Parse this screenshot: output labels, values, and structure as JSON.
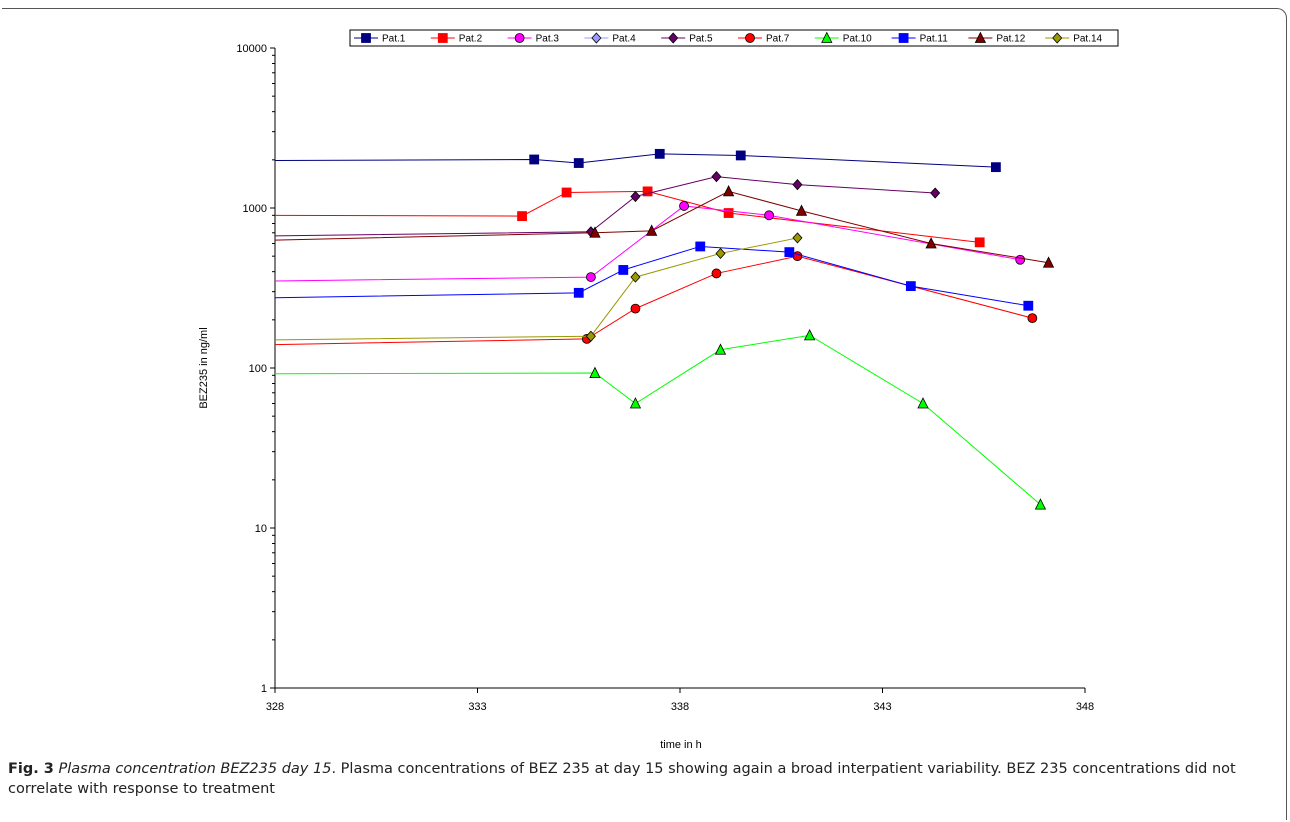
{
  "caption": {
    "label": "Fig. 3",
    "title": "Plasma concentration BEZ235 day 15",
    "text": ". Plasma concentrations of BEZ 235 at day 15 showing again a broad interpatient variability. BEZ 235 concentrations did not correlate with response to treatment"
  },
  "chart_data": {
    "type": "line",
    "xlabel": "time in h",
    "ylabel": "BEZ235 in ng/ml",
    "xlim": [
      328,
      348
    ],
    "ylim": [
      1,
      10000
    ],
    "yscale": "log",
    "xticks": [
      328,
      333,
      338,
      343,
      348
    ],
    "yticks": [
      1,
      10,
      100,
      1000,
      10000
    ],
    "legend_position": "top",
    "grid": false,
    "series": [
      {
        "name": "Pat.1",
        "color": "#000080",
        "marker": "square",
        "x": [
          328,
          334.4,
          335.5,
          337.5,
          339.5,
          345.8
        ],
        "y": [
          1980,
          2010,
          1910,
          2180,
          2130,
          1800
        ]
      },
      {
        "name": "Pat.2",
        "color": "#ff0000",
        "marker": "square",
        "x": [
          328,
          334.1,
          335.2,
          337.2,
          339.2,
          345.4
        ],
        "y": [
          900,
          890,
          1250,
          1270,
          930,
          610
        ]
      },
      {
        "name": "Pat.3",
        "color": "#ff00ff",
        "marker": "circle",
        "x": [
          328,
          335.8,
          338.1,
          340.2,
          346.4
        ],
        "y": [
          350,
          370,
          1030,
          900,
          475
        ]
      },
      {
        "name": "Pat.4",
        "color": "#9999ff",
        "marker": "diamond",
        "x": [],
        "y": []
      },
      {
        "name": "Pat.5",
        "color": "#660066",
        "marker": "diamond",
        "x": [
          328,
          335.8,
          336.9,
          338.9,
          340.9,
          344.3
        ],
        "y": [
          670,
          710,
          1180,
          1570,
          1400,
          1240
        ]
      },
      {
        "name": "Pat.7",
        "color": "#ff0000",
        "marker": "circle",
        "x": [
          328,
          335.7,
          336.9,
          338.9,
          340.9,
          346.7
        ],
        "y": [
          140,
          152,
          235,
          390,
          500,
          205
        ]
      },
      {
        "name": "Pat.10",
        "color": "#00ff00",
        "marker": "triangle",
        "x": [
          328,
          335.9,
          336.9,
          339.0,
          341.2,
          344.0,
          346.9
        ],
        "y": [
          92,
          93,
          60,
          130,
          160,
          60,
          14
        ]
      },
      {
        "name": "Pat.11",
        "color": "#0000ff",
        "marker": "square",
        "x": [
          328,
          335.5,
          336.6,
          338.5,
          340.7,
          343.7,
          346.6
        ],
        "y": [
          275,
          295,
          410,
          575,
          530,
          325,
          245
        ]
      },
      {
        "name": "Pat.12",
        "color": "#800000",
        "marker": "triangle",
        "x": [
          328,
          335.9,
          337.3,
          339.2,
          341.0,
          344.2,
          347.1
        ],
        "y": [
          630,
          700,
          720,
          1270,
          960,
          600,
          455
        ]
      },
      {
        "name": "Pat.14",
        "color": "#999900",
        "marker": "diamond",
        "x": [
          328,
          335.8,
          336.9,
          339.0,
          340.9
        ],
        "y": [
          150,
          158,
          370,
          520,
          650
        ]
      }
    ]
  }
}
